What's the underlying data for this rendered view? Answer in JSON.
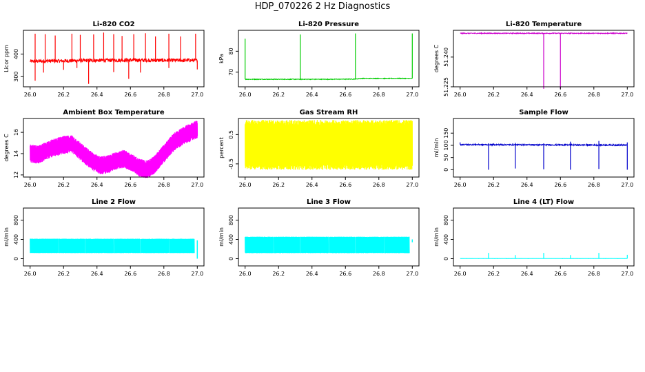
{
  "page_title": "HDP_070226  2 Hz Diagnostics",
  "chart_data": [
    {
      "id": "co2",
      "type": "line",
      "title": "Li-820 CO2",
      "xlabel": "",
      "ylabel": "Licor ppm",
      "color": "#ff0000",
      "xlim": [
        26.0,
        27.0
      ],
      "ylim": [
        255,
        505
      ],
      "xticks": [
        26.0,
        26.2,
        26.4,
        26.6,
        26.8,
        27.0
      ],
      "xticklabels": [
        "26.0",
        "26.2",
        "26.4",
        "26.6",
        "26.8",
        "27.0"
      ],
      "yticks": [
        300,
        400
      ],
      "yticklabels": [
        "300",
        "400"
      ],
      "series": [
        {
          "baseline": [
            [
              26.0,
              368
            ],
            [
              26.2,
              370
            ],
            [
              26.4,
              372
            ],
            [
              26.6,
              373
            ],
            [
              26.8,
              372
            ],
            [
              27.0,
              372
            ]
          ],
          "noise": 8,
          "spikes_up": [
            [
              26.03,
              490
            ],
            [
              26.09,
              488
            ],
            [
              26.15,
              482
            ],
            [
              26.25,
              490
            ],
            [
              26.3,
              485
            ],
            [
              26.38,
              487
            ],
            [
              26.44,
              495
            ],
            [
              26.5,
              488
            ],
            [
              26.55,
              480
            ],
            [
              26.62,
              488
            ],
            [
              26.69,
              492
            ],
            [
              26.75,
              478
            ],
            [
              26.83,
              490
            ],
            [
              26.9,
              478
            ],
            [
              26.99,
              490
            ]
          ],
          "spikes_down": [
            [
              26.03,
              282
            ],
            [
              26.08,
              318
            ],
            [
              26.2,
              330
            ],
            [
              26.28,
              338
            ],
            [
              26.35,
              268
            ],
            [
              26.5,
              320
            ],
            [
              26.59,
              290
            ],
            [
              26.66,
              318
            ],
            [
              26.83,
              338
            ],
            [
              27.0,
              332
            ]
          ]
        }
      ]
    },
    {
      "id": "pressure",
      "type": "line",
      "title": "Li-820 Pressure",
      "xlabel": "",
      "ylabel": "kPa",
      "color": "#00cc00",
      "xlim": [
        26.0,
        27.0
      ],
      "ylim": [
        63,
        90
      ],
      "xticks": [
        26.0,
        26.2,
        26.4,
        26.6,
        26.8,
        27.0
      ],
      "xticklabels": [
        "26.0",
        "26.2",
        "26.4",
        "26.6",
        "26.8",
        "27.0"
      ],
      "yticks": [
        70,
        80
      ],
      "yticklabels": [
        "70",
        "80"
      ],
      "series": [
        {
          "baseline": [
            [
              26.0,
              66.6
            ],
            [
              26.3,
              66.6
            ],
            [
              26.5,
              66.6
            ],
            [
              26.66,
              66.7
            ],
            [
              26.7,
              67.0
            ],
            [
              27.0,
              67.0
            ]
          ],
          "noise": 0.15,
          "spikes_up": [
            [
              26.0,
              86
            ],
            [
              26.33,
              88
            ],
            [
              26.66,
              88.5
            ],
            [
              27.0,
              88.5
            ]
          ],
          "spikes_down": []
        }
      ]
    },
    {
      "id": "temp820",
      "type": "line",
      "title": "Li-820 Temperature",
      "xlabel": "",
      "ylabel": "degrees C",
      "color": "#cc00cc",
      "xlim": [
        26.0,
        27.0
      ],
      "ylim": [
        51.225,
        51.2535
      ],
      "xticks": [
        26.0,
        26.2,
        26.4,
        26.6,
        26.8,
        27.0
      ],
      "xticklabels": [
        "26.0",
        "26.2",
        "26.4",
        "26.6",
        "26.8",
        "27.0"
      ],
      "yticks": [
        51.225,
        51.24
      ],
      "yticklabels": [
        "51.225",
        "51.240"
      ],
      "series": [
        {
          "baseline": [
            [
              26.0,
              51.252
            ],
            [
              27.0,
              51.252
            ]
          ],
          "noise": 0.0002,
          "spikes_up": [],
          "spikes_down": [
            [
              26.5,
              51.224
            ],
            [
              26.6,
              51.224
            ]
          ]
        }
      ]
    },
    {
      "id": "ambient",
      "type": "line",
      "title": "Ambient Box Temperature",
      "xlabel": "",
      "ylabel": "degrees C",
      "color": "#ff00ff",
      "xlim": [
        26.0,
        27.0
      ],
      "ylim": [
        11.8,
        17.3
      ],
      "xticks": [
        26.0,
        26.2,
        26.4,
        26.6,
        26.8,
        27.0
      ],
      "xticklabels": [
        "26.0",
        "26.2",
        "26.4",
        "26.6",
        "26.8",
        "27.0"
      ],
      "yticks": [
        12,
        14,
        16
      ],
      "yticklabels": [
        "12",
        "14",
        "16"
      ],
      "series": [
        {
          "band": [
            [
              26.0,
              14.0
            ],
            [
              26.05,
              13.9
            ],
            [
              26.1,
              14.3
            ],
            [
              26.15,
              14.6
            ],
            [
              26.2,
              14.8
            ],
            [
              26.25,
              14.9
            ],
            [
              26.28,
              14.5
            ],
            [
              26.33,
              13.8
            ],
            [
              26.38,
              13.2
            ],
            [
              26.42,
              12.9
            ],
            [
              26.47,
              13.0
            ],
            [
              26.52,
              13.4
            ],
            [
              26.56,
              13.5
            ],
            [
              26.6,
              13.2
            ],
            [
              26.65,
              12.7
            ],
            [
              26.7,
              12.5
            ],
            [
              26.74,
              12.9
            ],
            [
              26.8,
              14.0
            ],
            [
              26.86,
              15.1
            ],
            [
              26.92,
              15.7
            ],
            [
              26.96,
              16.0
            ],
            [
              27.0,
              16.3
            ]
          ],
          "halfwidth": 0.7,
          "noise": 0.15
        }
      ]
    },
    {
      "id": "rh",
      "type": "line",
      "title": "Gas Stream RH",
      "xlabel": "",
      "ylabel": "percent",
      "color": "#ffff00",
      "xlim": [
        26.0,
        27.0
      ],
      "ylim": [
        -0.95,
        1.05
      ],
      "xticks": [
        26.0,
        26.2,
        26.4,
        26.6,
        26.8,
        27.0
      ],
      "xticklabels": [
        "26.0",
        "26.2",
        "26.4",
        "26.6",
        "26.8",
        "27.0"
      ],
      "yticks": [
        -0.5,
        0.5
      ],
      "yticklabels": [
        "-0.5",
        "0.5"
      ],
      "series": [
        {
          "band": [
            [
              26.0,
              0.15
            ],
            [
              27.0,
              0.15
            ]
          ],
          "halfwidth": 0.75,
          "noise": 0.1
        }
      ]
    },
    {
      "id": "sample",
      "type": "line",
      "title": "Sample Flow",
      "xlabel": "",
      "ylabel": "ml/min",
      "color": "#0000cc",
      "xlim": [
        26.0,
        27.0
      ],
      "ylim": [
        -30,
        210
      ],
      "xticks": [
        26.0,
        26.2,
        26.4,
        26.6,
        26.8,
        27.0
      ],
      "xticklabels": [
        "26.0",
        "26.2",
        "26.4",
        "26.6",
        "26.8",
        "27.0"
      ],
      "yticks": [
        0,
        50,
        100,
        150
      ],
      "yticklabels": [
        "0",
        "50",
        "100",
        "150"
      ],
      "series": [
        {
          "baseline": [
            [
              26.0,
              103
            ],
            [
              27.0,
              101
            ]
          ],
          "noise": 2.5,
          "spikes_up": [
            [
              26.0,
              112
            ],
            [
              26.17,
              108
            ],
            [
              26.33,
              110
            ],
            [
              26.5,
              108
            ],
            [
              26.66,
              115
            ],
            [
              26.83,
              118
            ],
            [
              27.0,
              112
            ]
          ],
          "spikes_down": [
            [
              26.17,
              0
            ],
            [
              26.33,
              5
            ],
            [
              26.5,
              2
            ],
            [
              26.66,
              0
            ],
            [
              26.83,
              3
            ],
            [
              27.0,
              0
            ]
          ]
        }
      ]
    },
    {
      "id": "line2",
      "type": "line",
      "title": "Line 2 Flow",
      "xlabel": "",
      "ylabel": "ml/min",
      "color": "#00ffff",
      "xlim": [
        26.0,
        27.0
      ],
      "ylim": [
        -150,
        1050
      ],
      "xticks": [
        26.0,
        26.2,
        26.4,
        26.6,
        26.8,
        27.0
      ],
      "xticklabels": [
        "26.0",
        "26.2",
        "26.4",
        "26.6",
        "26.8",
        "27.0"
      ],
      "yticks": [
        0,
        400,
        800
      ],
      "yticklabels": [
        "0",
        "400",
        "800"
      ],
      "series": [
        {
          "band": [
            [
              26.0,
              265
            ],
            [
              27.0,
              265
            ]
          ],
          "halfwidth": 145,
          "noise": 5,
          "gaps": [
            26.17,
            26.33,
            26.5,
            26.66,
            26.83,
            26.985
          ],
          "tail": [
            26.985,
            27.0,
            0,
            380
          ]
        }
      ]
    },
    {
      "id": "line3",
      "type": "line",
      "title": "Line 3 Flow",
      "xlabel": "",
      "ylabel": "ml/min",
      "color": "#00ffff",
      "xlim": [
        26.0,
        27.0
      ],
      "ylim": [
        -150,
        1050
      ],
      "xticks": [
        26.0,
        26.2,
        26.4,
        26.6,
        26.8,
        27.0
      ],
      "xticklabels": [
        "26.0",
        "26.2",
        "26.4",
        "26.6",
        "26.8",
        "27.0"
      ],
      "yticks": [
        0,
        400,
        800
      ],
      "yticklabels": [
        "0",
        "400",
        "800"
      ],
      "series": [
        {
          "band": [
            [
              26.0,
              285
            ],
            [
              27.0,
              285
            ]
          ],
          "halfwidth": 165,
          "noise": 6,
          "gaps": [
            26.17,
            26.33,
            26.5,
            26.66,
            26.83,
            26.985
          ],
          "tail": [
            26.985,
            27.0,
            340,
            400
          ]
        }
      ]
    },
    {
      "id": "line4",
      "type": "line",
      "title": "Line 4 (LT) Flow",
      "xlabel": "",
      "ylabel": "ml/min",
      "color": "#00ffff",
      "xlim": [
        26.0,
        27.0
      ],
      "ylim": [
        -150,
        1050
      ],
      "xticks": [
        26.0,
        26.2,
        26.4,
        26.6,
        26.8,
        27.0
      ],
      "xticklabels": [
        "26.0",
        "26.2",
        "26.4",
        "26.6",
        "26.8",
        "27.0"
      ],
      "yticks": [
        0,
        400,
        800
      ],
      "yticklabels": [
        "0",
        "400",
        "800"
      ],
      "series": [
        {
          "baseline": [
            [
              26.0,
              3
            ],
            [
              27.0,
              3
            ]
          ],
          "noise": 1,
          "spikes_up": [
            [
              26.17,
              120
            ],
            [
              26.33,
              75
            ],
            [
              26.5,
              120
            ],
            [
              26.66,
              75
            ],
            [
              26.83,
              120
            ],
            [
              27.0,
              80
            ]
          ],
          "spikes_down": []
        }
      ]
    }
  ]
}
